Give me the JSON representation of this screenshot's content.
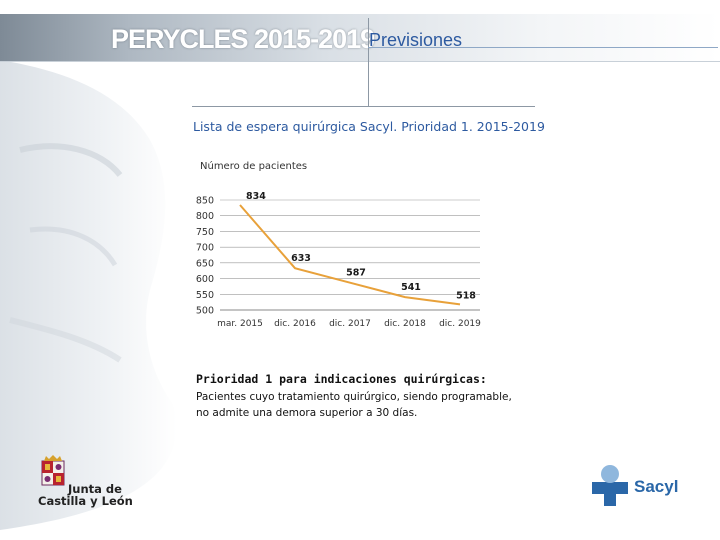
{
  "header": {
    "brand_title": "PERYCLES 2015-2019",
    "section_title": "Previsiones"
  },
  "chart_heading": "Lista de espera quirúrgica Sacyl. Prioridad 1. 2015-2019",
  "chart_data": {
    "type": "line",
    "ylabel": "Número de pacientes",
    "categories": [
      "mar. 2015",
      "dic. 2016",
      "dic. 2017",
      "dic. 2018",
      "dic. 2019"
    ],
    "values": [
      834,
      633,
      587,
      541,
      518
    ],
    "ylim": [
      500,
      850
    ],
    "yticks": [
      850,
      800,
      750,
      700,
      650,
      600,
      550,
      500
    ],
    "grid": true,
    "series_color": "#e8a13a",
    "label_color": "#1a1a1a"
  },
  "priority": {
    "heading": "Prioridad 1 para indicaciones quirúrgicas:",
    "line1": "Pacientes cuyo tratamiento quirúrgico, siendo programable,",
    "line2": "no admite una demora superior a 30 días."
  },
  "logos": {
    "jcyl_line1": "Junta de",
    "jcyl_line2": "Castilla y León",
    "sacyl": "Sacyl"
  },
  "colors": {
    "accent_blue": "#2d5aa0",
    "sacyl_blue": "#2a67a8"
  }
}
